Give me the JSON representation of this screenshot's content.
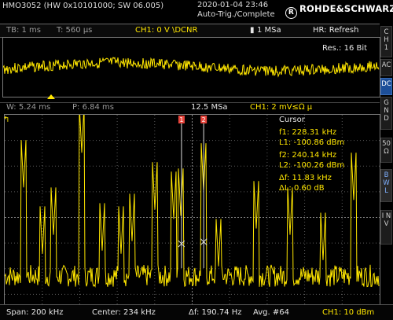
{
  "header": {
    "model": "HMO3052 (HW 0x10101000; SW 06.005)",
    "datetime": "2020-01-04 23:46",
    "trigger_mode": "Auto-Trig./Complete",
    "brand": "ROHDE&SCHWARZ",
    "brand_mark": "R"
  },
  "timebase_bar": {
    "tb": "TB: 1 ms",
    "t": "T: 560 µs",
    "channel": "CH1: 0 V \\DCNR",
    "sample_rate": "1 MSa",
    "hr": "HR: Refresh"
  },
  "zoom": {
    "resolution": "Res.: 16 Bit"
  },
  "info_bar": {
    "window": "W: 5.24 ms",
    "position": "P: 6.84 ms",
    "rate": "12.5 MSa",
    "ch_scale": "CH1: 2 mV≤Ω µ"
  },
  "markers": {
    "m1": "1",
    "m2": "2"
  },
  "cursor_panel": {
    "title": "Cursor",
    "f1": "f1: 228.31 kHz",
    "l1": "L1: -100.86 dBm",
    "f2": "f2: 240.14 kHz",
    "l2": "L2: -100.26 dBm",
    "df": "Δf: 11.83 kHz",
    "dl": "ΔL: 0.60 dB"
  },
  "status_bar": {
    "span": "Span: 200 kHz",
    "center": "Center: 234 kHz",
    "delta_f": "Δf: 190.74 Hz",
    "avg": "Avg. #64",
    "ch_ref": "CH1: 10 dBm"
  },
  "side_buttons": [
    {
      "label": "C H 1"
    },
    {
      "label": "AC"
    },
    {
      "label": "DC"
    },
    {
      "label": "G N D"
    },
    {
      "label": "50 Ω"
    },
    {
      "label": "B W L"
    },
    {
      "label": "I N V"
    }
  ],
  "colors": {
    "trace": "#ffe600",
    "background": "#000000",
    "grid": "#6a6a6a",
    "cursor_marker": "#e8453c",
    "active_button": "#1d4f99"
  },
  "chart_data": {
    "type": "line",
    "xlabel": "",
    "ylabel": "",
    "xlim": [
      134,
      334
    ],
    "series": [
      {
        "x": [
          138,
          144,
          150,
          154,
          160,
          168,
          175,
          181,
          186,
          191,
          196,
          202,
          208,
          214,
          220,
          224,
          228,
          232,
          236,
          240,
          244,
          248,
          252,
          256,
          262,
          268,
          274,
          280,
          286,
          292,
          298,
          304,
          312,
          320,
          330
        ],
        "values": [
          -110,
          -103,
          -108,
          -113,
          -98,
          -112,
          -106,
          -111,
          -104,
          -112,
          -107,
          -102,
          -109,
          -96,
          -108,
          -102,
          -100.9,
          -108,
          -104,
          -100.3,
          -106,
          -110,
          -113,
          -111,
          -108,
          -112,
          -110,
          -104,
          -112,
          -108,
          -113,
          -110,
          -114,
          -100,
          -112
        ]
      }
    ],
    "grid": true
  }
}
